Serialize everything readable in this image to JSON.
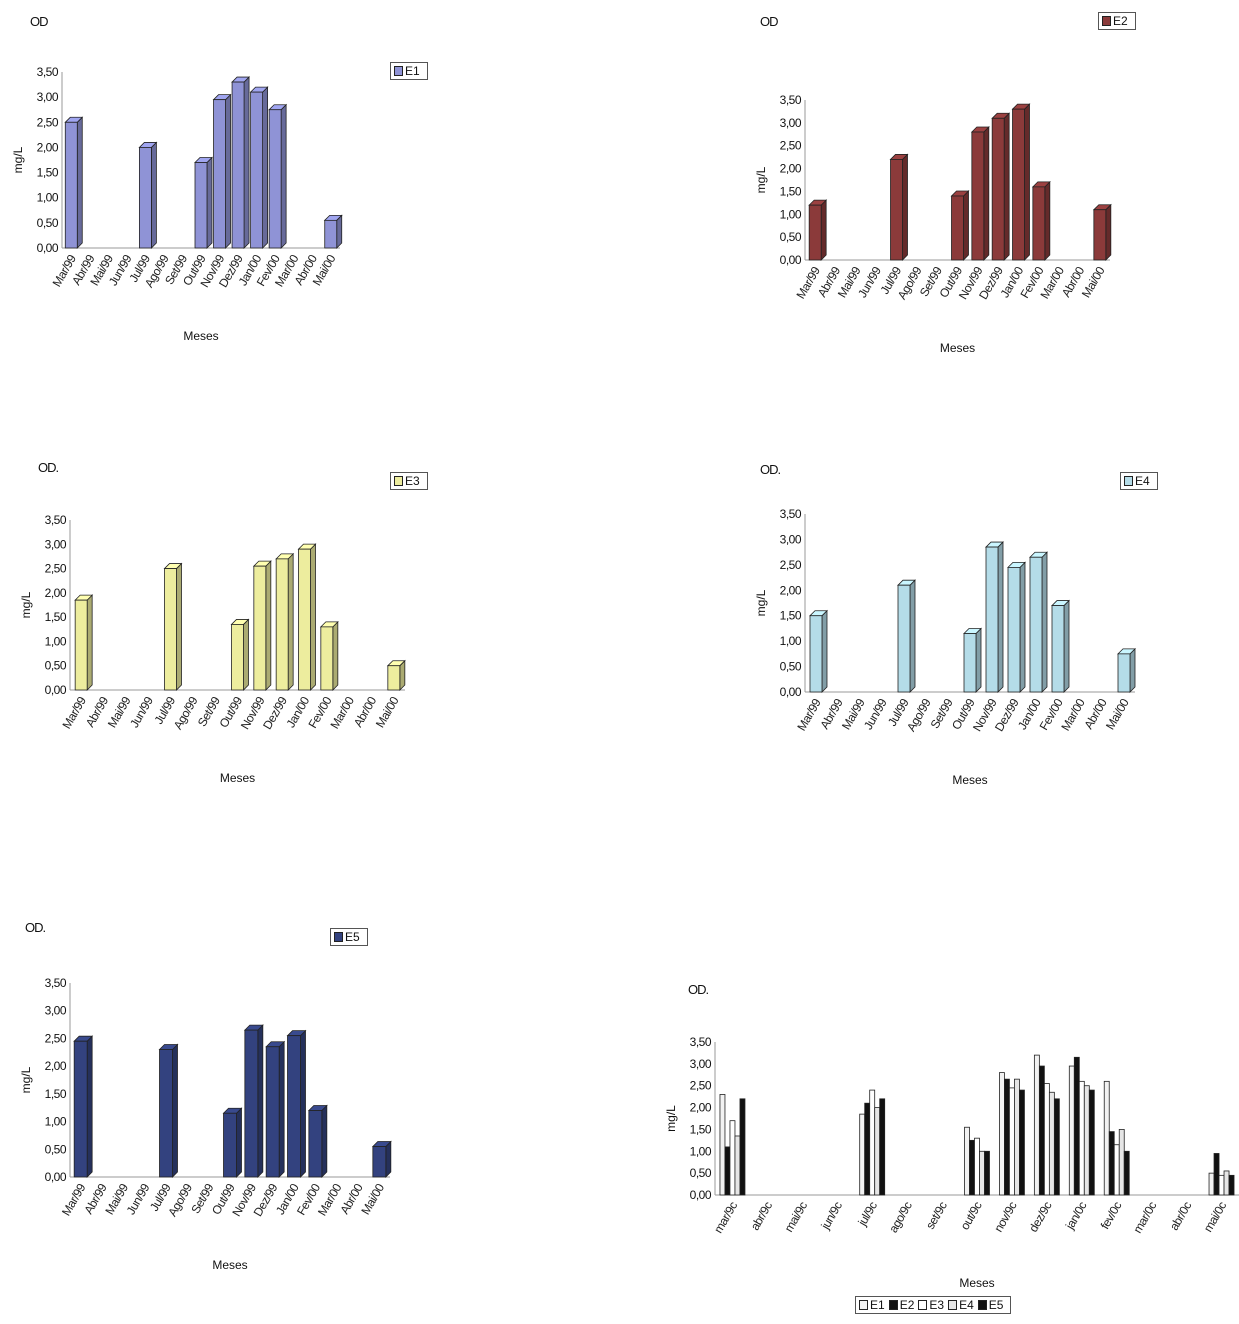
{
  "chart_data": [
    {
      "id": "e1",
      "type": "bar",
      "title": "OD",
      "legend": [
        {
          "name": "E1",
          "color": "#8f93d6"
        }
      ],
      "categories": [
        "Mar/99",
        "Abr/99",
        "Mai/99",
        "Jun/99",
        "Jul/99",
        "Ago/99",
        "Set/99",
        "Out/99",
        "Nov/99",
        "Dez/99",
        "Jan/00",
        "Fev/00",
        "Mar/00",
        "Abr/00",
        "Mai/00"
      ],
      "series": [
        {
          "name": "E1",
          "color": "#8f93d6",
          "values": [
            2.5,
            0,
            0,
            0,
            2.0,
            0,
            0,
            1.7,
            2.95,
            3.3,
            3.1,
            2.75,
            0,
            0,
            0.55
          ]
        }
      ],
      "yticks": [
        "0,00",
        "0,50",
        "1,00",
        "1,50",
        "2,00",
        "2,50",
        "3,00",
        "3,50"
      ],
      "ylim": [
        0,
        3.5
      ],
      "xlabel": "Meses",
      "ylabel": "mg/L"
    },
    {
      "id": "e2",
      "type": "bar",
      "title": "OD",
      "legend": [
        {
          "name": "E2",
          "color": "#8b3a3a"
        }
      ],
      "categories": [
        "Mar/99",
        "Abr/99",
        "Mai/99",
        "Jun/99",
        "Jul/99",
        "Ago/99",
        "Set/99",
        "Out/99",
        "Nov/99",
        "Dez/99",
        "Jan/00",
        "Fev/00",
        "Mar/00",
        "Abr/00",
        "Mai/00"
      ],
      "series": [
        {
          "name": "E2",
          "color": "#8b3a3a",
          "values": [
            1.2,
            0,
            0,
            0,
            2.2,
            0,
            0,
            1.4,
            2.8,
            3.1,
            3.3,
            1.6,
            0,
            0,
            1.1
          ]
        }
      ],
      "yticks": [
        "0,00",
        "0,50",
        "1,00",
        "1,50",
        "2,00",
        "2,50",
        "3,00",
        "3,50"
      ],
      "ylim": [
        0,
        3.5
      ],
      "xlabel": "Meses",
      "ylabel": "mg/L"
    },
    {
      "id": "e3",
      "type": "bar",
      "title": "OD.",
      "legend": [
        {
          "name": "E3",
          "color": "#eded9e"
        }
      ],
      "categories": [
        "Mar/99",
        "Abr/99",
        "Mai/99",
        "Jun/99",
        "Jul/99",
        "Ago/99",
        "Set/99",
        "Out/99",
        "Nov/99",
        "Dez/99",
        "Jan/00",
        "Fev/00",
        "Mar/00",
        "Abr/00",
        "Mai/00"
      ],
      "series": [
        {
          "name": "E3",
          "color": "#eded9e",
          "values": [
            1.85,
            0,
            0,
            0,
            2.5,
            0,
            0,
            1.35,
            2.55,
            2.7,
            2.9,
            1.3,
            0,
            0,
            0.5
          ]
        }
      ],
      "yticks": [
        "0,00",
        "0,50",
        "1,00",
        "1,50",
        "2,00",
        "2,50",
        "3,00",
        "3,50"
      ],
      "ylim": [
        0,
        3.5
      ],
      "xlabel": "Meses",
      "ylabel": "mg/L"
    },
    {
      "id": "e4",
      "type": "bar",
      "title": "OD.",
      "legend": [
        {
          "name": "E4",
          "color": "#b4dce8"
        }
      ],
      "categories": [
        "Mar/99",
        "Abr/99",
        "Mai/99",
        "Jun/99",
        "Jul/99",
        "Ago/99",
        "Set/99",
        "Out/99",
        "Nov/99",
        "Dez/99",
        "Jan/00",
        "Fev/00",
        "Mar/00",
        "Abr/00",
        "Mai/00"
      ],
      "series": [
        {
          "name": "E4",
          "color": "#b4dce8",
          "values": [
            1.5,
            0,
            0,
            0,
            2.1,
            0,
            0,
            1.15,
            2.85,
            2.45,
            2.65,
            1.7,
            0,
            0,
            0.75
          ]
        }
      ],
      "yticks": [
        "0,00",
        "0,50",
        "1,00",
        "1,50",
        "2,00",
        "2,50",
        "3,00",
        "3,50"
      ],
      "ylim": [
        0,
        3.5
      ],
      "xlabel": "Meses",
      "ylabel": "mg/L"
    },
    {
      "id": "e5",
      "type": "bar",
      "title": "OD.",
      "legend": [
        {
          "name": "E5",
          "color": "#33427f"
        }
      ],
      "categories": [
        "Mar/99",
        "Abr/99",
        "Mai/99",
        "Jun/99",
        "Jul/99",
        "Ago/99",
        "Set/99",
        "Out/99",
        "Nov/99",
        "Dez/99",
        "Jan/00",
        "Fev/00",
        "Mar/00",
        "Abr/00",
        "Mai/00"
      ],
      "series": [
        {
          "name": "E5",
          "color": "#33427f",
          "values": [
            2.45,
            0,
            0,
            0,
            2.3,
            0,
            0,
            1.15,
            2.65,
            2.35,
            2.55,
            1.2,
            0,
            0,
            0.55
          ]
        }
      ],
      "yticks": [
        "0,00",
        "0,50",
        "1,00",
        "1,50",
        "2,00",
        "2,50",
        "3,00",
        "3,50"
      ],
      "ylim": [
        0,
        3.5
      ],
      "xlabel": "Meses",
      "ylabel": "mg/L"
    },
    {
      "id": "all",
      "type": "bar",
      "title": "OD.",
      "legend": [
        {
          "name": "E1",
          "color": "#f2f2f2"
        },
        {
          "name": "E2",
          "color": "#111111"
        },
        {
          "name": "E3",
          "color": "#ffffff"
        },
        {
          "name": "E4",
          "color": "#e6e6e6"
        },
        {
          "name": "E5",
          "color": "#111111"
        }
      ],
      "categories": [
        "mar/9c",
        "abr/9c",
        "mai/9c",
        "jun/9c",
        "jul/9c",
        "ago/9c",
        "set/9c",
        "out/9c",
        "nov/9c",
        "dez/9c",
        "jan/0c",
        "fev/0c",
        "mar/0c",
        "abr/0c",
        "mai/0c"
      ],
      "series": [
        {
          "name": "E1",
          "color": "#f2f2f2",
          "values": [
            2.3,
            0,
            0,
            0,
            1.85,
            0,
            0,
            1.55,
            2.8,
            3.2,
            2.95,
            2.6,
            0,
            0,
            0.5
          ]
        },
        {
          "name": "E2",
          "color": "#111111",
          "values": [
            1.1,
            0,
            0,
            0,
            2.1,
            0,
            0,
            1.25,
            2.65,
            2.95,
            3.15,
            1.45,
            0,
            0,
            0.95
          ]
        },
        {
          "name": "E3",
          "color": "#ffffff",
          "values": [
            1.7,
            0,
            0,
            0,
            2.4,
            0,
            0,
            1.3,
            2.45,
            2.55,
            2.6,
            1.15,
            0,
            0,
            0.45
          ]
        },
        {
          "name": "E4",
          "color": "#e6e6e6",
          "values": [
            1.35,
            0,
            0,
            0,
            2.0,
            0,
            0,
            1.0,
            2.65,
            2.35,
            2.5,
            1.5,
            0,
            0,
            0.55
          ]
        },
        {
          "name": "E5",
          "color": "#111111",
          "values": [
            2.2,
            0,
            0,
            0,
            2.2,
            0,
            0,
            1.0,
            2.4,
            2.2,
            2.4,
            1.0,
            0,
            0,
            0.45
          ]
        }
      ],
      "yticks": [
        "0,00",
        "0,50",
        "1,00",
        "1,50",
        "2,00",
        "2,50",
        "3,00",
        "3,50"
      ],
      "ylim": [
        0,
        3.5
      ],
      "xlabel": "Meses",
      "ylabel": "mg/L"
    }
  ]
}
